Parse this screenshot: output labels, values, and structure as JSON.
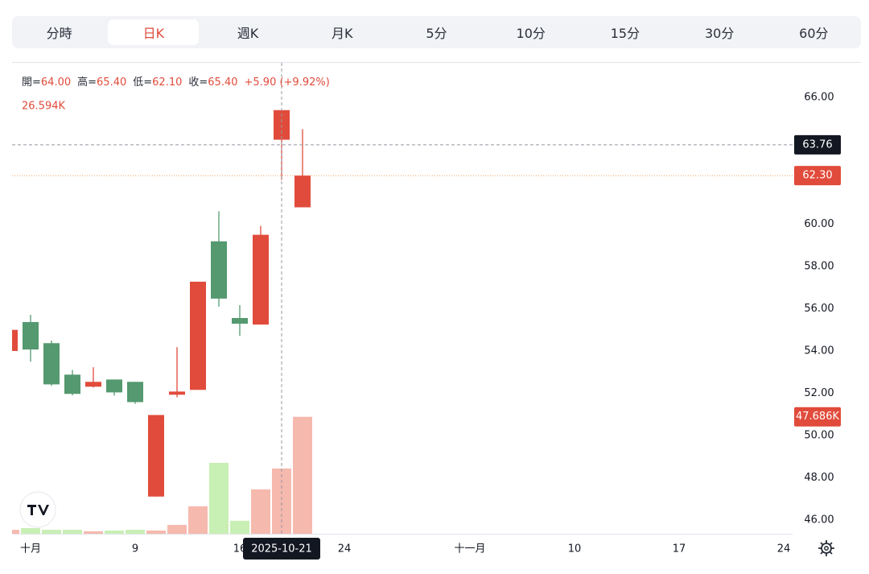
{
  "tabs": {
    "items": [
      "分時",
      "日K",
      "週K",
      "月K",
      "5分",
      "10分",
      "15分",
      "30分",
      "60分"
    ],
    "active": 1
  },
  "info": {
    "fields": [
      {
        "label": "開=",
        "value": "64.00"
      },
      {
        "label": "高=",
        "value": "65.40"
      },
      {
        "label": "低=",
        "value": "62.10"
      },
      {
        "label": "收=",
        "value": "65.40"
      }
    ],
    "change": "+5.90 (+9.92%)"
  },
  "chart_data": {
    "type": "candlestick",
    "categories": [
      null,
      "十月",
      null,
      null,
      null,
      null,
      "9",
      null,
      null,
      null,
      null,
      "16",
      null,
      "2025-10-21",
      null,
      null,
      "24",
      null,
      null,
      null,
      null,
      null,
      "十一月",
      null,
      null,
      null,
      null,
      "10",
      null,
      null,
      null,
      null,
      "17",
      null,
      null,
      null,
      null,
      "24"
    ],
    "open": [
      54.0,
      55.37,
      54.37,
      52.88,
      52.31,
      52.65,
      52.54,
      47.11,
      51.93,
      52.16,
      59.19,
      55.56,
      55.25,
      64.0,
      60.8,
      null,
      null,
      null,
      null,
      null,
      null,
      null,
      null,
      null,
      null,
      null,
      null,
      null,
      null,
      null,
      null,
      null,
      null,
      null,
      null,
      null,
      null,
      null
    ],
    "high": [
      55.0,
      55.71,
      54.5,
      53.1,
      53.23,
      52.65,
      52.54,
      50.97,
      54.18,
      57.28,
      60.61,
      56.17,
      59.92,
      65.4,
      64.5,
      null,
      null,
      null,
      null,
      null,
      null,
      null,
      null,
      null,
      null,
      null,
      null,
      null,
      null,
      null,
      null,
      null,
      null,
      null,
      null,
      null,
      null,
      null
    ],
    "low": [
      54.0,
      53.49,
      52.35,
      51.9,
      52.27,
      51.89,
      51.5,
      47.11,
      51.81,
      52.16,
      56.1,
      54.72,
      55.25,
      62.1,
      60.8,
      null,
      null,
      null,
      null,
      null,
      null,
      null,
      null,
      null,
      null,
      null,
      null,
      null,
      null,
      null,
      null,
      null,
      null,
      null,
      null,
      null,
      null,
      null
    ],
    "close": [
      55.0,
      54.07,
      52.42,
      51.97,
      52.54,
      52.04,
      51.58,
      50.97,
      52.08,
      57.28,
      56.48,
      55.29,
      59.5,
      65.4,
      62.3,
      null,
      null,
      null,
      null,
      null,
      null,
      null,
      null,
      null,
      null,
      null,
      null,
      null,
      null,
      null,
      null,
      null,
      null,
      null,
      null,
      null,
      null,
      null
    ],
    "volume": {
      "values": [
        1.6,
        2.3,
        1.6,
        1.6,
        1.0,
        1.3,
        1.6,
        1.3,
        3.6,
        11.2,
        28.9,
        5.3,
        18.1,
        26.594,
        47.686,
        null,
        null,
        null,
        null,
        null,
        null,
        null,
        null,
        null,
        null,
        null,
        null,
        null,
        null,
        null,
        null,
        null,
        null,
        null,
        null,
        null,
        null,
        null
      ],
      "value_labels": [
        null,
        null,
        null,
        null,
        null,
        null,
        null,
        null,
        null,
        null,
        null,
        null,
        null,
        "26.594K",
        "47.686K",
        null,
        null,
        null,
        null,
        null,
        null,
        null,
        null,
        null,
        null,
        null,
        null,
        null,
        null,
        null,
        null,
        null,
        null,
        null,
        null,
        null,
        null,
        null
      ],
      "ylim": [
        0,
        192
      ]
    },
    "ylim": [
      45.35,
      67.64
    ],
    "yticks": [
      {
        "value": 46,
        "label": "46.00"
      },
      {
        "value": 48,
        "label": "48.00"
      },
      {
        "value": 50,
        "label": "50.00"
      },
      {
        "value": 52,
        "label": "52.00"
      },
      {
        "value": 54,
        "label": "54.00"
      },
      {
        "value": 56,
        "label": "56.00"
      },
      {
        "value": 58,
        "label": "58.00"
      },
      {
        "value": 60,
        "label": "60.00"
      },
      {
        "value": 66,
        "label": "66.00"
      }
    ],
    "crosshair_price": 63.76,
    "crosshair_index": 13,
    "last_price": {
      "value": 62.3,
      "label": "62.30"
    },
    "up_color": "#e14b3b",
    "down_color": "#54996f",
    "volume_up_color": "#f6b9ae",
    "volume_down_color": "#c8efb4"
  }
}
